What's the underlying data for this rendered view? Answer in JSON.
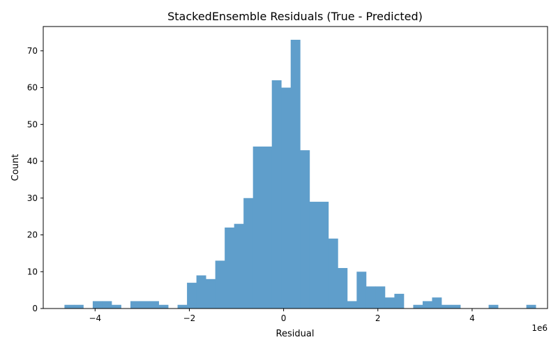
{
  "chart_data": {
    "type": "bar",
    "title": "StackedEnsemble Residuals (True - Predicted)",
    "xlabel": "Residual",
    "ylabel": "Count",
    "x_offset_label": "1e6",
    "bar_color": "#5f9ecb",
    "xlim": [
      -5.1,
      5.6
    ],
    "ylim": [
      0,
      76.6
    ],
    "xticks": [
      -4,
      -2,
      0,
      2,
      4
    ],
    "xtick_labels": [
      "−4",
      "−2",
      "0",
      "2",
      "4"
    ],
    "yticks": [
      0,
      10,
      20,
      30,
      40,
      50,
      60,
      70
    ],
    "ytick_labels": [
      "0",
      "10",
      "20",
      "30",
      "40",
      "50",
      "60",
      "70"
    ],
    "bin_start": -4.65,
    "bin_width": 0.2,
    "counts": [
      1,
      1,
      0,
      2,
      2,
      1,
      0,
      2,
      2,
      2,
      1,
      0,
      1,
      7,
      9,
      8,
      13,
      22,
      23,
      30,
      44,
      44,
      62,
      60,
      73,
      43,
      29,
      29,
      19,
      11,
      2,
      10,
      6,
      6,
      3,
      4,
      0,
      1,
      2,
      3,
      1,
      1,
      0,
      0,
      0,
      1,
      0,
      0,
      0,
      1
    ],
    "grid": false,
    "legend": "none"
  }
}
